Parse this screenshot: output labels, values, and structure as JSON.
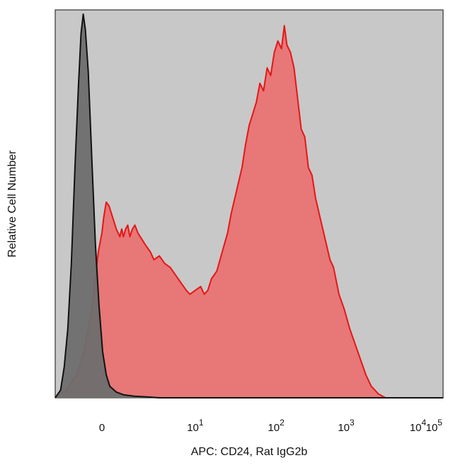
{
  "chart_data": {
    "type": "area",
    "title": "",
    "xlabel": "APC: CD24, Rat IgG2b",
    "ylabel": "Relative Cell Number",
    "x_scale": "biexponential",
    "x_ticks": [
      {
        "value": 0,
        "base": "0",
        "exp": ""
      },
      {
        "value": 10,
        "base": "10",
        "exp": "1"
      },
      {
        "value": 100,
        "base": "10",
        "exp": "2"
      },
      {
        "value": 1000,
        "base": "10",
        "exp": "3"
      },
      {
        "value": 10000,
        "base": "10",
        "exp": "4"
      },
      {
        "value": 100000,
        "base": "10",
        "exp": "5"
      }
    ],
    "y_ticks_shown": false,
    "ylim": [
      0,
      100
    ],
    "plot_background": "#c8c8c8",
    "series": [
      {
        "color": "#e51616",
        "fill": "#e87777",
        "points": [
          [
            -1.3,
            0
          ],
          [
            -1.0,
            2
          ],
          [
            -0.7,
            6
          ],
          [
            -0.5,
            12
          ],
          [
            -0.3,
            22
          ],
          [
            -0.1,
            38
          ],
          [
            0,
            43
          ],
          [
            0.05,
            47
          ],
          [
            0.12,
            51
          ],
          [
            0.2,
            50
          ],
          [
            0.3,
            47
          ],
          [
            0.4,
            44
          ],
          [
            0.5,
            42
          ],
          [
            0.55,
            44
          ],
          [
            0.6,
            42
          ],
          [
            0.66,
            44
          ],
          [
            0.72,
            45
          ],
          [
            0.78,
            42
          ],
          [
            0.85,
            44
          ],
          [
            0.92,
            45
          ],
          [
            1,
            43
          ],
          [
            1.2,
            40
          ],
          [
            1.35,
            38
          ],
          [
            1.45,
            36
          ],
          [
            1.6,
            37
          ],
          [
            1.75,
            35
          ],
          [
            1.9,
            34
          ],
          [
            2.05,
            32
          ],
          [
            2.2,
            30
          ],
          [
            2.35,
            28
          ],
          [
            2.45,
            27
          ],
          [
            2.6,
            28
          ],
          [
            2.75,
            29
          ],
          [
            2.85,
            27
          ],
          [
            2.95,
            28
          ],
          [
            3.05,
            31
          ],
          [
            3.2,
            33
          ],
          [
            3.35,
            38
          ],
          [
            3.5,
            43
          ],
          [
            3.6,
            48
          ],
          [
            3.7,
            52
          ],
          [
            3.8,
            56
          ],
          [
            3.9,
            60
          ],
          [
            4.0,
            66
          ],
          [
            4.1,
            71
          ],
          [
            4.2,
            74
          ],
          [
            4.3,
            77
          ],
          [
            4.4,
            82
          ],
          [
            4.5,
            80
          ],
          [
            4.6,
            86
          ],
          [
            4.7,
            84
          ],
          [
            4.8,
            90
          ],
          [
            4.9,
            93
          ],
          [
            5.0,
            91
          ],
          [
            5.08,
            97
          ],
          [
            5.15,
            92
          ],
          [
            5.25,
            90
          ],
          [
            5.35,
            86
          ],
          [
            5.45,
            78
          ],
          [
            5.55,
            70
          ],
          [
            5.65,
            68
          ],
          [
            5.75,
            60
          ],
          [
            5.85,
            58
          ],
          [
            5.95,
            52
          ],
          [
            6.05,
            48
          ],
          [
            6.15,
            44
          ],
          [
            6.25,
            40
          ],
          [
            6.35,
            36
          ],
          [
            6.45,
            34
          ],
          [
            6.6,
            27
          ],
          [
            6.75,
            23
          ],
          [
            6.9,
            18
          ],
          [
            7.05,
            14
          ],
          [
            7.2,
            10
          ],
          [
            7.35,
            6
          ],
          [
            7.5,
            3
          ],
          [
            7.7,
            1
          ],
          [
            7.9,
            0
          ],
          [
            9.5,
            0
          ]
        ]
      },
      {
        "color": "#111111",
        "fill": "#6e6e6e",
        "points": [
          [
            -1.3,
            0
          ],
          [
            -1.15,
            2
          ],
          [
            -1.05,
            8
          ],
          [
            -0.95,
            18
          ],
          [
            -0.85,
            35
          ],
          [
            -0.75,
            60
          ],
          [
            -0.65,
            82
          ],
          [
            -0.58,
            95
          ],
          [
            -0.52,
            100
          ],
          [
            -0.46,
            96
          ],
          [
            -0.38,
            85
          ],
          [
            -0.28,
            62
          ],
          [
            -0.18,
            40
          ],
          [
            -0.08,
            24
          ],
          [
            0.02,
            12
          ],
          [
            0.12,
            6
          ],
          [
            0.22,
            3
          ],
          [
            0.4,
            1.5
          ],
          [
            0.6,
            0.8
          ],
          [
            0.9,
            0.4
          ],
          [
            1.3,
            0.2
          ],
          [
            1.6,
            0
          ],
          [
            9.5,
            0
          ]
        ]
      }
    ]
  }
}
